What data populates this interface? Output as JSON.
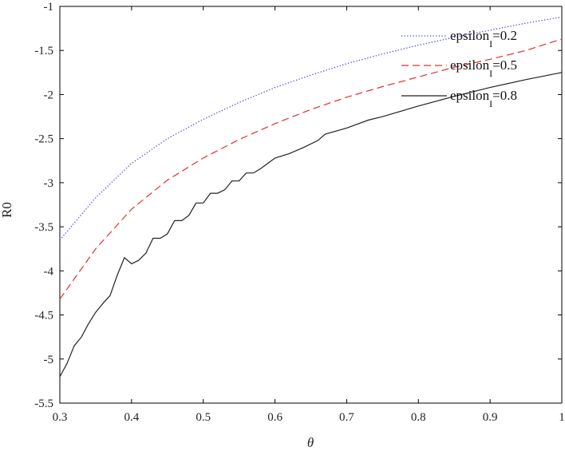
{
  "chart_data": {
    "type": "line",
    "xlabel": "θ",
    "ylabel": "R0",
    "xlim": [
      0.3,
      1.0
    ],
    "ylim": [
      -5.5,
      -1.0
    ],
    "xticks": [
      0.3,
      0.4,
      0.5,
      0.6,
      0.7,
      0.8,
      0.9,
      1.0
    ],
    "xtick_labels": [
      "0.3",
      "0.4",
      "0.5",
      "0.6",
      "0.7",
      "0.8",
      "0.9",
      "1"
    ],
    "yticks": [
      -5.5,
      -5.0,
      -4.5,
      -4.0,
      -3.5,
      -3.0,
      -2.5,
      -2.0,
      -1.5,
      -1.0
    ],
    "ytick_labels": [
      "-5.5",
      "-5",
      "-4.5",
      "-4",
      "-3.5",
      "-3",
      "-2.5",
      "-2",
      "-1.5",
      "-1"
    ],
    "grid": false,
    "legend_position": "top-right",
    "series": [
      {
        "name": "epsilon_I=0.2",
        "label_main": "epsilon",
        "label_sub": "I",
        "label_tail": "=0.2",
        "style": "dotted",
        "color": "#3b3bd6",
        "x": [
          0.3,
          0.35,
          0.4,
          0.45,
          0.5,
          0.55,
          0.6,
          0.65,
          0.7,
          0.75,
          0.8,
          0.85,
          0.9,
          0.95,
          1.0
        ],
        "y": [
          -3.65,
          -3.17,
          -2.78,
          -2.5,
          -2.28,
          -2.09,
          -1.92,
          -1.78,
          -1.65,
          -1.54,
          -1.44,
          -1.35,
          -1.27,
          -1.19,
          -1.12
        ]
      },
      {
        "name": "epsilon_I=0.5",
        "label_main": "epsilon",
        "label_sub": "I",
        "label_tail": "=0.5",
        "style": "dashed",
        "color": "#e03030",
        "x": [
          0.3,
          0.35,
          0.4,
          0.45,
          0.5,
          0.55,
          0.6,
          0.65,
          0.7,
          0.75,
          0.8,
          0.85,
          0.9,
          0.95,
          1.0
        ],
        "y": [
          -4.32,
          -3.75,
          -3.3,
          -2.97,
          -2.72,
          -2.51,
          -2.33,
          -2.17,
          -2.03,
          -1.91,
          -1.8,
          -1.69,
          -1.6,
          -1.5,
          -1.37
        ]
      },
      {
        "name": "epsilon_I=0.8",
        "label_main": "epsilon",
        "label_sub": "I",
        "label_tail": "=0.8",
        "style": "solid",
        "color": "#222222",
        "x": [
          0.3,
          0.31,
          0.32,
          0.33,
          0.34,
          0.35,
          0.36,
          0.37,
          0.38,
          0.39,
          0.4,
          0.41,
          0.42,
          0.43,
          0.44,
          0.45,
          0.46,
          0.47,
          0.48,
          0.49,
          0.5,
          0.51,
          0.52,
          0.53,
          0.54,
          0.55,
          0.56,
          0.57,
          0.58,
          0.59,
          0.6,
          0.62,
          0.64,
          0.66,
          0.67,
          0.7,
          0.73,
          0.75,
          0.8,
          0.85,
          0.9,
          0.95,
          1.0
        ],
        "y": [
          -5.2,
          -5.05,
          -4.85,
          -4.75,
          -4.6,
          -4.47,
          -4.37,
          -4.28,
          -4.05,
          -3.85,
          -3.92,
          -3.88,
          -3.8,
          -3.63,
          -3.63,
          -3.58,
          -3.43,
          -3.43,
          -3.37,
          -3.23,
          -3.23,
          -3.12,
          -3.12,
          -3.08,
          -2.98,
          -2.98,
          -2.89,
          -2.89,
          -2.84,
          -2.78,
          -2.72,
          -2.67,
          -2.6,
          -2.52,
          -2.45,
          -2.38,
          -2.29,
          -2.25,
          -2.13,
          -2.02,
          -1.92,
          -1.83,
          -1.75
        ]
      }
    ]
  }
}
